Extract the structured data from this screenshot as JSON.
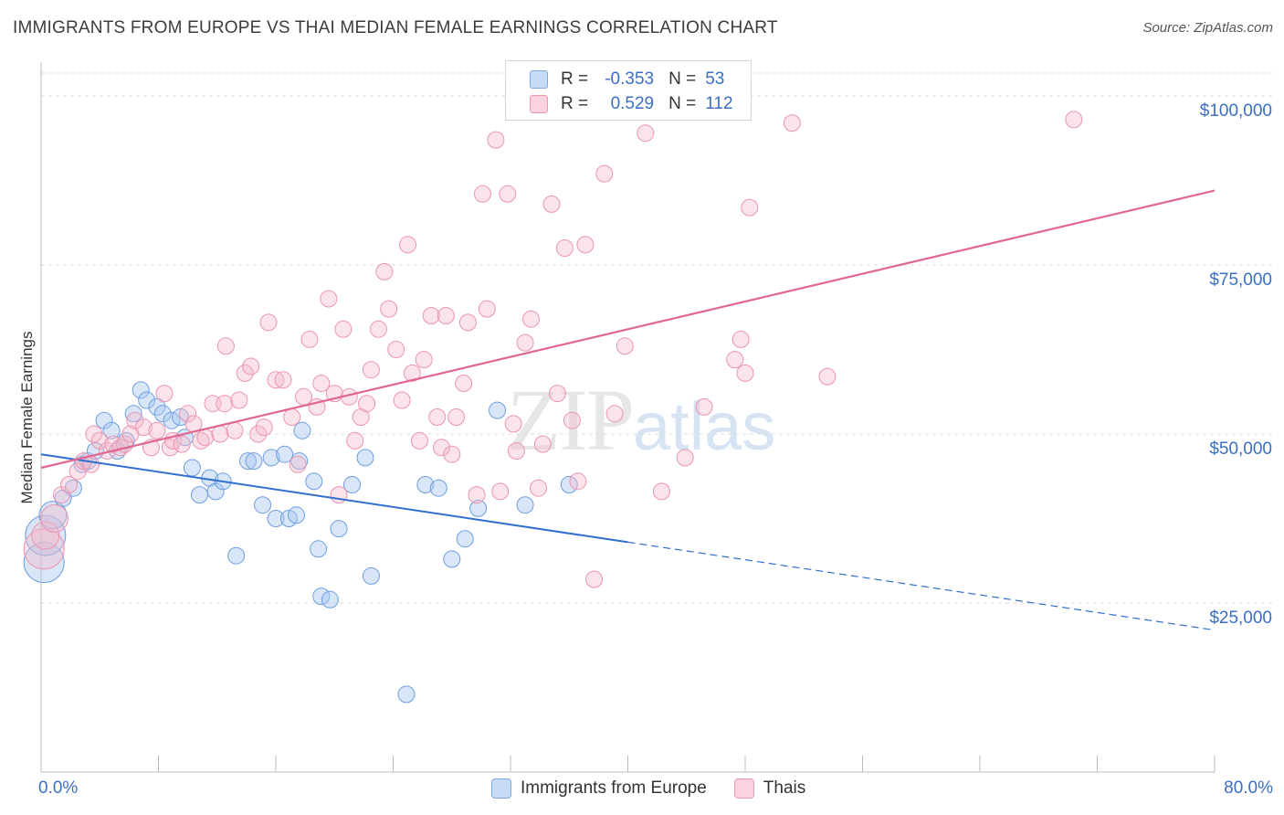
{
  "title": "IMMIGRANTS FROM EUROPE VS THAI MEDIAN FEMALE EARNINGS CORRELATION CHART",
  "source": "Source: ZipAtlas.com",
  "watermark": {
    "zip": "ZIP",
    "atlas": "atlas"
  },
  "legend": {
    "rows": [
      {
        "r_label": "R =",
        "r_value": "-0.353",
        "n_label": "N =",
        "n_value": "53",
        "color": "#a8c8f0"
      },
      {
        "r_label": "R =",
        "r_value": "0.529",
        "n_label": "N =",
        "n_value": "112",
        "color": "#f5b8cb"
      }
    ]
  },
  "bottom_legend": [
    "Immigrants from Europe",
    "Thais"
  ],
  "chart_data": {
    "type": "scatter",
    "xlabel": "",
    "ylabel": "Median Female Earnings",
    "xlim": [
      0,
      80
    ],
    "ylim": [
      0,
      105000
    ],
    "x_tick_labels": [
      "0.0%",
      "80.0%"
    ],
    "y_tick_labels": [
      "$25,000",
      "$50,000",
      "$75,000",
      "$100,000"
    ],
    "y_tick_values": [
      25000,
      50000,
      75000,
      100000
    ],
    "grid": true,
    "colors": {
      "europe": "#5b94dc",
      "thai": "#e8739a",
      "europe_line": "#2f6fd0",
      "thai_line": "#e06690"
    },
    "series": [
      {
        "name": "Immigrants from Europe",
        "trend": {
          "x0": 0,
          "y0": 47000,
          "x1": 40,
          "y1": 34000,
          "x_dash_end": 80,
          "y_dash_end": 21000
        },
        "points": [
          [
            0.2,
            31000,
            3
          ],
          [
            0.3,
            35000,
            3
          ],
          [
            0.8,
            38000,
            2
          ],
          [
            1.5,
            40500,
            1
          ],
          [
            2.2,
            42000,
            1
          ],
          [
            2.8,
            45500,
            1
          ],
          [
            3.2,
            46000,
            1
          ],
          [
            3.7,
            47500,
            1
          ],
          [
            4.3,
            52000,
            1
          ],
          [
            4.8,
            50500,
            1
          ],
          [
            5.2,
            47500,
            1
          ],
          [
            5.8,
            49000,
            1
          ],
          [
            6.3,
            53000,
            1
          ],
          [
            6.8,
            56500,
            1
          ],
          [
            7.2,
            55000,
            1
          ],
          [
            7.9,
            54000,
            1
          ],
          [
            8.3,
            53000,
            1
          ],
          [
            8.9,
            52000,
            1
          ],
          [
            9.5,
            52500,
            1
          ],
          [
            9.8,
            49500,
            1
          ],
          [
            10.3,
            45000,
            1
          ],
          [
            10.8,
            41000,
            1
          ],
          [
            11.5,
            43500,
            1
          ],
          [
            11.9,
            41500,
            1
          ],
          [
            12.4,
            43000,
            1
          ],
          [
            13.3,
            32000,
            1
          ],
          [
            14.1,
            46000,
            1
          ],
          [
            14.5,
            46000,
            1
          ],
          [
            15.1,
            39500,
            1
          ],
          [
            15.7,
            46500,
            1
          ],
          [
            16.0,
            37500,
            1
          ],
          [
            16.6,
            47000,
            1
          ],
          [
            16.9,
            37500,
            1
          ],
          [
            17.4,
            38000,
            1
          ],
          [
            17.6,
            46000,
            1
          ],
          [
            17.8,
            50500,
            1
          ],
          [
            18.6,
            43000,
            1
          ],
          [
            18.9,
            33000,
            1
          ],
          [
            19.1,
            26000,
            1
          ],
          [
            19.7,
            25500,
            1
          ],
          [
            20.3,
            36000,
            1
          ],
          [
            21.2,
            42500,
            1
          ],
          [
            22.1,
            46500,
            1
          ],
          [
            22.5,
            29000,
            1
          ],
          [
            24.9,
            11500,
            1
          ],
          [
            26.2,
            42500,
            1
          ],
          [
            27.1,
            42000,
            1
          ],
          [
            28.0,
            31500,
            1
          ],
          [
            28.9,
            34500,
            1
          ],
          [
            29.8,
            39000,
            1
          ],
          [
            31.1,
            53500,
            1
          ],
          [
            33.0,
            39500,
            1
          ],
          [
            36.0,
            42500,
            1
          ]
        ]
      },
      {
        "name": "Thais",
        "trend": {
          "x0": 0,
          "y0": 45000,
          "x1": 80,
          "y1": 86000
        },
        "points": [
          [
            0.2,
            33000,
            3
          ],
          [
            0.3,
            35000,
            2
          ],
          [
            0.9,
            37500,
            2
          ],
          [
            1.4,
            41000,
            1
          ],
          [
            1.9,
            42500,
            1
          ],
          [
            2.5,
            44500,
            1
          ],
          [
            2.9,
            46000,
            1
          ],
          [
            3.4,
            45500,
            1
          ],
          [
            3.6,
            50000,
            1
          ],
          [
            4.0,
            49000,
            1
          ],
          [
            4.5,
            47500,
            1
          ],
          [
            4.9,
            48500,
            1
          ],
          [
            5.4,
            48000,
            1
          ],
          [
            5.7,
            48500,
            1
          ],
          [
            6.1,
            50000,
            1
          ],
          [
            6.4,
            52000,
            1
          ],
          [
            7.0,
            51000,
            1
          ],
          [
            7.5,
            48000,
            1
          ],
          [
            7.9,
            50500,
            1
          ],
          [
            8.4,
            56000,
            1
          ],
          [
            8.8,
            48000,
            1
          ],
          [
            9.0,
            49000,
            1
          ],
          [
            9.6,
            48500,
            1
          ],
          [
            10.0,
            53000,
            1
          ],
          [
            10.4,
            51500,
            1
          ],
          [
            10.9,
            49000,
            1
          ],
          [
            11.2,
            49500,
            1
          ],
          [
            11.7,
            54500,
            1
          ],
          [
            12.2,
            50000,
            1
          ],
          [
            12.5,
            54500,
            1
          ],
          [
            12.6,
            63000,
            1
          ],
          [
            13.2,
            50500,
            1
          ],
          [
            13.5,
            55000,
            1
          ],
          [
            13.9,
            59000,
            1
          ],
          [
            14.3,
            60000,
            1
          ],
          [
            14.8,
            50000,
            1
          ],
          [
            15.2,
            51000,
            1
          ],
          [
            15.5,
            66500,
            1
          ],
          [
            16.0,
            58000,
            1
          ],
          [
            16.5,
            58000,
            1
          ],
          [
            17.1,
            52500,
            1
          ],
          [
            17.5,
            45500,
            1
          ],
          [
            17.9,
            55500,
            1
          ],
          [
            18.3,
            64000,
            1
          ],
          [
            18.8,
            54000,
            1
          ],
          [
            19.1,
            57500,
            1
          ],
          [
            19.6,
            70000,
            1
          ],
          [
            20.0,
            56000,
            1
          ],
          [
            20.3,
            41000,
            1
          ],
          [
            20.6,
            65500,
            1
          ],
          [
            21.0,
            55500,
            1
          ],
          [
            21.4,
            49000,
            1
          ],
          [
            21.8,
            52500,
            1
          ],
          [
            22.2,
            54500,
            1
          ],
          [
            22.5,
            59500,
            1
          ],
          [
            23.0,
            65500,
            1
          ],
          [
            23.4,
            74000,
            1
          ],
          [
            23.7,
            68500,
            1
          ],
          [
            24.2,
            62500,
            1
          ],
          [
            24.6,
            55000,
            1
          ],
          [
            25.0,
            78000,
            1
          ],
          [
            25.3,
            59000,
            1
          ],
          [
            25.8,
            49000,
            1
          ],
          [
            26.1,
            61000,
            1
          ],
          [
            26.6,
            67500,
            1
          ],
          [
            27.0,
            52500,
            1
          ],
          [
            27.3,
            48000,
            1
          ],
          [
            27.6,
            67500,
            1
          ],
          [
            28.0,
            47000,
            1
          ],
          [
            28.3,
            52500,
            1
          ],
          [
            28.8,
            57500,
            1
          ],
          [
            29.1,
            66500,
            1
          ],
          [
            29.7,
            41000,
            1
          ],
          [
            30.1,
            85500,
            1
          ],
          [
            30.4,
            68500,
            1
          ],
          [
            31.0,
            93500,
            1
          ],
          [
            31.3,
            41500,
            1
          ],
          [
            31.8,
            85500,
            1
          ],
          [
            32.2,
            51500,
            1
          ],
          [
            32.4,
            47500,
            1
          ],
          [
            33.0,
            63500,
            1
          ],
          [
            33.4,
            67000,
            1
          ],
          [
            33.9,
            42000,
            1
          ],
          [
            34.2,
            48500,
            1
          ],
          [
            34.8,
            84000,
            1
          ],
          [
            35.2,
            56000,
            1
          ],
          [
            35.7,
            77500,
            1
          ],
          [
            36.2,
            52000,
            1
          ],
          [
            36.6,
            43000,
            1
          ],
          [
            37.1,
            78000,
            1
          ],
          [
            37.7,
            28500,
            1
          ],
          [
            38.4,
            88500,
            1
          ],
          [
            39.1,
            53000,
            1
          ],
          [
            39.8,
            63000,
            1
          ],
          [
            41.2,
            94500,
            1
          ],
          [
            42.3,
            41500,
            1
          ],
          [
            43.9,
            46500,
            1
          ],
          [
            45.2,
            54000,
            1
          ],
          [
            47.3,
            61000,
            1
          ],
          [
            47.7,
            64000,
            1
          ],
          [
            48.0,
            59000,
            1
          ],
          [
            48.3,
            83500,
            1
          ],
          [
            51.2,
            96000,
            1
          ],
          [
            53.6,
            58500,
            1
          ],
          [
            70.4,
            96500,
            1
          ]
        ]
      }
    ]
  }
}
